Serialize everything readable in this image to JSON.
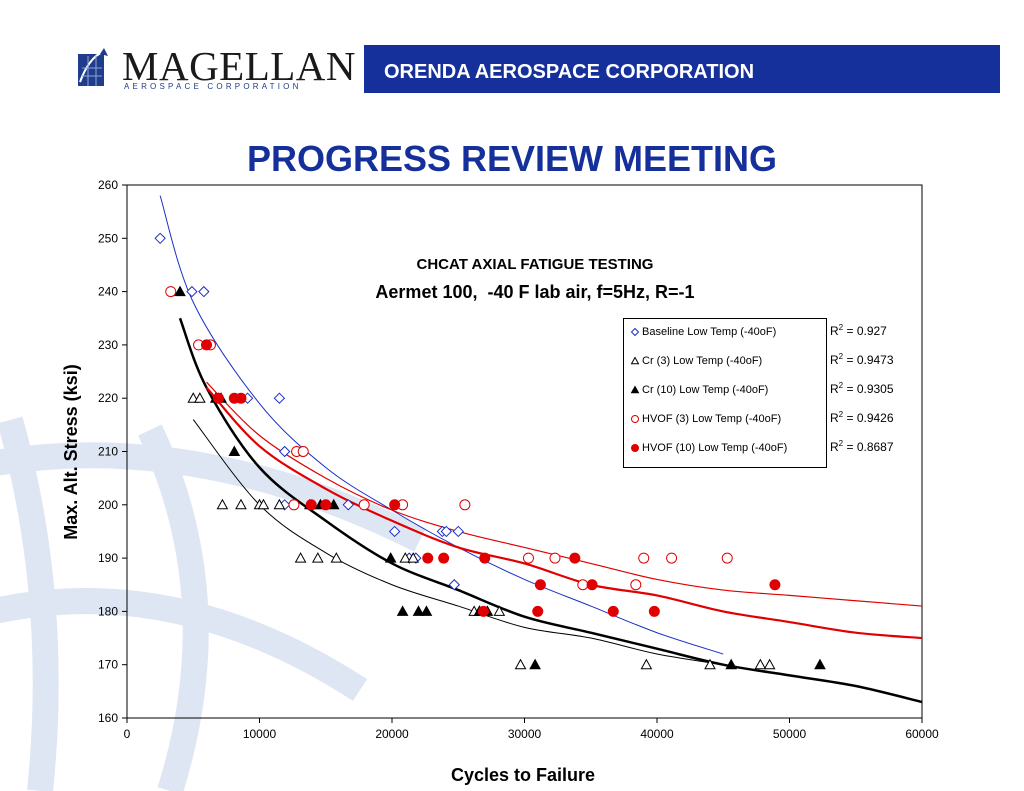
{
  "header": {
    "logo_word": "MAGELLAN",
    "logo_sub": "AEROSPACE CORPORATION",
    "banner": "ORENDA AEROSPACE CORPORATION",
    "slide_title": "PROGRESS REVIEW MEETING"
  },
  "colors": {
    "banner": "#16309b",
    "baseline": "#1a2fc8",
    "hvof": "#e00000",
    "cr": "#000000"
  },
  "chart_data": {
    "type": "scatter",
    "title": "CHCAT AXIAL FATIGUE TESTING",
    "subtitle": "Aermet 100,  -40 F lab air, f=5Hz, R=-1",
    "xlabel": "Cycles to Failure",
    "ylabel": "Max. Alt. Stress (ksi)",
    "xlim": [
      0,
      60000
    ],
    "ylim": [
      160,
      260
    ],
    "xticks": [
      "0",
      "10000",
      "20000",
      "30000",
      "40000",
      "50000",
      "60000"
    ],
    "yticks": [
      "160",
      "170",
      "180",
      "190",
      "200",
      "210",
      "220",
      "230",
      "240",
      "250",
      "260"
    ],
    "legend_position": "right",
    "series": [
      {
        "name": "Baseline Low Temp (-40oF)",
        "marker": "diamond-open",
        "color": "#1a2fc8",
        "r2": "0.927",
        "points": [
          [
            2500,
            250
          ],
          [
            4900,
            240
          ],
          [
            5800,
            240
          ],
          [
            6900,
            220
          ],
          [
            9100,
            220
          ],
          [
            11500,
            220
          ],
          [
            11900,
            210
          ],
          [
            12800,
            210
          ],
          [
            13200,
            210
          ],
          [
            11900,
            200
          ],
          [
            16700,
            200
          ],
          [
            20200,
            195
          ],
          [
            21300,
            190
          ],
          [
            21800,
            190
          ],
          [
            23800,
            195
          ],
          [
            24100,
            195
          ],
          [
            25000,
            195
          ],
          [
            24700,
            185
          ]
        ],
        "trend": [
          [
            2500,
            258
          ],
          [
            5000,
            238
          ],
          [
            10000,
            219
          ],
          [
            15000,
            207
          ],
          [
            20000,
            199
          ],
          [
            25000,
            192
          ],
          [
            30000,
            186
          ],
          [
            35000,
            181
          ],
          [
            40000,
            176
          ],
          [
            45000,
            172
          ]
        ]
      },
      {
        "name": "Cr (3) Low Temp (-40oF)",
        "marker": "triangle-open",
        "color": "#000000",
        "r2": "0.9473",
        "points": [
          [
            5000,
            220
          ],
          [
            5500,
            220
          ],
          [
            7200,
            200
          ],
          [
            8600,
            200
          ],
          [
            10000,
            200
          ],
          [
            10300,
            200
          ],
          [
            11500,
            200
          ],
          [
            13100,
            190
          ],
          [
            14400,
            190
          ],
          [
            15800,
            190
          ],
          [
            21000,
            190
          ],
          [
            21600,
            190
          ],
          [
            26200,
            180
          ],
          [
            26600,
            180
          ],
          [
            28100,
            180
          ],
          [
            29700,
            170
          ],
          [
            39200,
            170
          ],
          [
            44000,
            170
          ],
          [
            47800,
            170
          ],
          [
            48500,
            170
          ]
        ],
        "trend": [
          [
            5000,
            216
          ],
          [
            10000,
            200
          ],
          [
            15000,
            191
          ],
          [
            20000,
            185
          ],
          [
            25000,
            181
          ],
          [
            30000,
            177
          ],
          [
            35000,
            175
          ],
          [
            40000,
            172
          ],
          [
            45000,
            170
          ],
          [
            50000,
            168
          ]
        ]
      },
      {
        "name": "Cr (10) Low Temp (-40oF)",
        "marker": "triangle-filled",
        "color": "#000000",
        "r2": "0.9305",
        "points": [
          [
            4000,
            240
          ],
          [
            6700,
            220
          ],
          [
            7100,
            220
          ],
          [
            8100,
            210
          ],
          [
            13800,
            200
          ],
          [
            14600,
            200
          ],
          [
            15600,
            200
          ],
          [
            19900,
            190
          ],
          [
            20800,
            180
          ],
          [
            22000,
            180
          ],
          [
            22600,
            180
          ],
          [
            26600,
            180
          ],
          [
            27200,
            180
          ],
          [
            30800,
            170
          ],
          [
            45600,
            170
          ],
          [
            52300,
            170
          ]
        ],
        "trend": [
          [
            4000,
            235
          ],
          [
            6000,
            222
          ],
          [
            10000,
            207
          ],
          [
            15000,
            197
          ],
          [
            20000,
            189
          ],
          [
            25000,
            184
          ],
          [
            30000,
            179
          ],
          [
            35000,
            176
          ],
          [
            40000,
            173
          ],
          [
            45000,
            170
          ],
          [
            50000,
            168
          ],
          [
            55000,
            166
          ],
          [
            60000,
            163
          ]
        ]
      },
      {
        "name": "HVOF (3) Low Temp (-40oF)",
        "marker": "circle-open",
        "color": "#e00000",
        "r2": "0.9426",
        "points": [
          [
            3300,
            240
          ],
          [
            5400,
            230
          ],
          [
            6300,
            230
          ],
          [
            12800,
            210
          ],
          [
            13300,
            210
          ],
          [
            12600,
            200
          ],
          [
            17900,
            200
          ],
          [
            20800,
            200
          ],
          [
            25500,
            200
          ],
          [
            30300,
            190
          ],
          [
            32300,
            190
          ],
          [
            34400,
            185
          ],
          [
            38400,
            185
          ],
          [
            39000,
            190
          ],
          [
            41100,
            190
          ],
          [
            45300,
            190
          ]
        ],
        "trend": [
          [
            6000,
            223
          ],
          [
            10000,
            213
          ],
          [
            15000,
            205
          ],
          [
            20000,
            199
          ],
          [
            25000,
            195
          ],
          [
            30000,
            192
          ],
          [
            35000,
            189
          ],
          [
            40000,
            186
          ],
          [
            45000,
            184
          ],
          [
            50000,
            183
          ],
          [
            55000,
            182
          ],
          [
            60000,
            181
          ]
        ]
      },
      {
        "name": "HVOF (10) Low Temp (-40oF)",
        "marker": "circle-filled",
        "color": "#e00000",
        "r2": "0.8687",
        "points": [
          [
            6000,
            230
          ],
          [
            6900,
            220
          ],
          [
            8100,
            220
          ],
          [
            8600,
            220
          ],
          [
            13900,
            200
          ],
          [
            15000,
            200
          ],
          [
            20200,
            200
          ],
          [
            22700,
            190
          ],
          [
            23900,
            190
          ],
          [
            27000,
            190
          ],
          [
            26900,
            180
          ],
          [
            31200,
            185
          ],
          [
            31000,
            180
          ],
          [
            33800,
            190
          ],
          [
            35100,
            185
          ],
          [
            36700,
            180
          ],
          [
            39800,
            180
          ],
          [
            48900,
            185
          ]
        ],
        "trend": [
          [
            6000,
            222
          ],
          [
            10000,
            211
          ],
          [
            15000,
            203
          ],
          [
            20000,
            197
          ],
          [
            25000,
            192
          ],
          [
            30000,
            189
          ],
          [
            35000,
            185
          ],
          [
            40000,
            183
          ],
          [
            45000,
            180
          ],
          [
            50000,
            178
          ],
          [
            55000,
            176
          ],
          [
            60000,
            175
          ]
        ]
      }
    ]
  }
}
